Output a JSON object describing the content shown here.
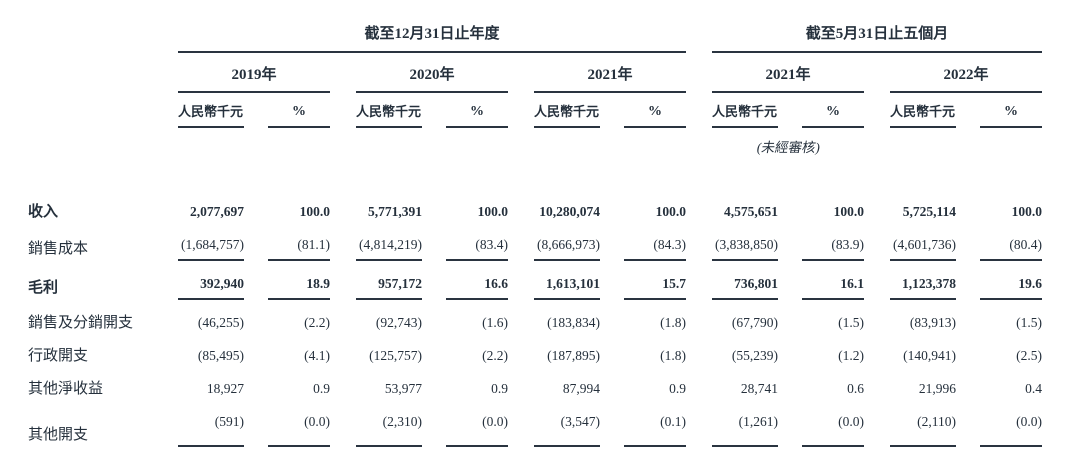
{
  "table": {
    "period_headers": [
      "截至12月31日止年度",
      "截至5月31日止五個月"
    ],
    "years": [
      "2019年",
      "2020年",
      "2021年",
      "2021年",
      "2022年"
    ],
    "column_headers": {
      "amount": "人民幣千元",
      "percent": "%"
    },
    "unaudited_note": "(未經審核)",
    "rows": [
      {
        "label": "收入",
        "cells": [
          "2,077,697",
          "100.0",
          "5,771,391",
          "100.0",
          "10,280,074",
          "100.0",
          "4,575,651",
          "100.0",
          "5,725,114",
          "100.0"
        ]
      },
      {
        "label": "銷售成本",
        "cells": [
          "(1,684,757)",
          "(81.1)",
          "(4,814,219)",
          "(83.4)",
          "(8,666,973)",
          "(84.3)",
          "(3,838,850)",
          "(83.9)",
          "(4,601,736)",
          "(80.4)"
        ]
      },
      {
        "label": "毛利",
        "cells": [
          "392,940",
          "18.9",
          "957,172",
          "16.6",
          "1,613,101",
          "15.7",
          "736,801",
          "16.1",
          "1,123,378",
          "19.6"
        ]
      },
      {
        "label": "銷售及分銷開支",
        "cells": [
          "(46,255)",
          "(2.2)",
          "(92,743)",
          "(1.6)",
          "(183,834)",
          "(1.8)",
          "(67,790)",
          "(1.5)",
          "(83,913)",
          "(1.5)"
        ]
      },
      {
        "label": "行政開支",
        "cells": [
          "(85,495)",
          "(4.1)",
          "(125,757)",
          "(2.2)",
          "(187,895)",
          "(1.8)",
          "(55,239)",
          "(1.2)",
          "(140,941)",
          "(2.5)"
        ]
      },
      {
        "label": "其他淨收益",
        "cells": [
          "18,927",
          "0.9",
          "53,977",
          "0.9",
          "87,994",
          "0.9",
          "28,741",
          "0.6",
          "21,996",
          "0.4"
        ]
      },
      {
        "label": "其他開支",
        "cells": [
          "(591)",
          "(0.0)",
          "(2,310)",
          "(0.0)",
          "(3,547)",
          "(0.1)",
          "(1,261)",
          "(0.0)",
          "(2,110)",
          "(0.0)"
        ]
      }
    ],
    "colors": {
      "text": "#25303c",
      "rule": "#2a3440",
      "background": "#ffffff"
    }
  }
}
